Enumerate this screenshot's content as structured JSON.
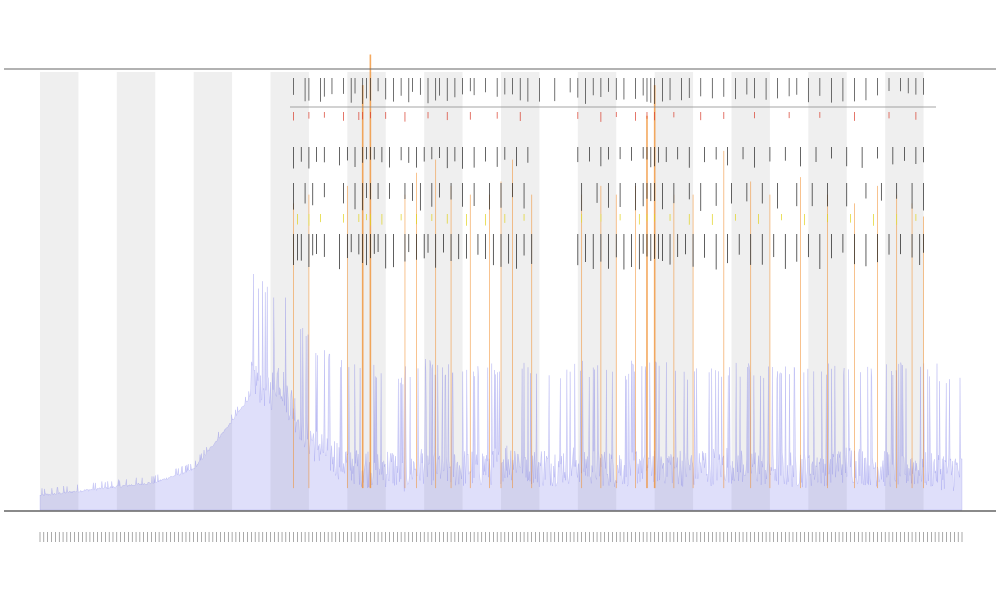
{
  "chart_data": {
    "type": "area",
    "title": "",
    "subtitle_lines": [],
    "xlabel": "",
    "ylabel": "",
    "grid": false,
    "legend_position": "top-left",
    "legend": [],
    "track_labels": [],
    "band_color": "#efefef",
    "area_color": "#6c6ce6",
    "x_range": [
      0,
      240
    ],
    "y_range": [
      0,
      1
    ],
    "bands": [
      [
        0,
        10
      ],
      [
        20,
        30
      ],
      [
        40,
        50
      ],
      [
        60,
        70
      ],
      [
        80,
        90
      ],
      [
        100,
        110
      ],
      [
        120,
        130
      ],
      [
        140,
        150
      ],
      [
        160,
        170
      ],
      [
        180,
        190
      ],
      [
        200,
        210
      ],
      [
        220,
        230
      ]
    ],
    "baseline_profile": {
      "x": [
        0,
        10,
        20,
        30,
        40,
        50,
        55,
        60,
        62,
        65,
        70,
        75,
        80,
        85,
        90,
        95,
        100,
        105,
        110,
        115,
        120,
        125,
        130,
        140,
        150,
        160,
        170,
        180,
        190,
        200,
        210,
        220,
        230,
        240
      ],
      "y": [
        0.03,
        0.04,
        0.05,
        0.06,
        0.09,
        0.2,
        0.26,
        0.22,
        0.26,
        0.2,
        0.12,
        0.08,
        0.06,
        0.05,
        0.05,
        0.04,
        0.06,
        0.05,
        0.05,
        0.05,
        0.06,
        0.07,
        0.05,
        0.06,
        0.05,
        0.06,
        0.05,
        0.06,
        0.05,
        0.05,
        0.06,
        0.05,
        0.05,
        0.04
      ]
    },
    "peaks": [
      {
        "x": 66,
        "height": 0.28
      },
      {
        "x": 70,
        "height": 0.3
      },
      {
        "x": 80,
        "height": 0.32
      },
      {
        "x": 84,
        "height": 0.55
      },
      {
        "x": 86,
        "height": 0.62
      },
      {
        "x": 95,
        "height": 0.3
      },
      {
        "x": 98,
        "height": 0.35
      },
      {
        "x": 103,
        "height": 0.38
      },
      {
        "x": 107,
        "height": 0.32
      },
      {
        "x": 112,
        "height": 0.3
      },
      {
        "x": 117,
        "height": 0.3
      },
      {
        "x": 120,
        "height": 0.33
      },
      {
        "x": 123,
        "height": 0.38
      },
      {
        "x": 128,
        "height": 0.3
      },
      {
        "x": 141,
        "height": 0.3
      },
      {
        "x": 146,
        "height": 0.32
      },
      {
        "x": 150,
        "height": 0.3
      },
      {
        "x": 155,
        "height": 0.32
      },
      {
        "x": 158,
        "height": 0.48
      },
      {
        "x": 160,
        "height": 0.55
      },
      {
        "x": 165,
        "height": 0.3
      },
      {
        "x": 170,
        "height": 0.3
      },
      {
        "x": 178,
        "height": 0.4
      },
      {
        "x": 185,
        "height": 0.33
      },
      {
        "x": 190,
        "height": 0.3
      },
      {
        "x": 198,
        "height": 0.34
      },
      {
        "x": 205,
        "height": 0.3
      },
      {
        "x": 212,
        "height": 0.28
      },
      {
        "x": 218,
        "height": 0.32
      },
      {
        "x": 223,
        "height": 0.3
      },
      {
        "x": 227,
        "height": 0.28
      },
      {
        "x": 230,
        "height": 0.25
      }
    ],
    "tracks": [
      {
        "name": "",
        "color": "#333333",
        "marks_x": [
          66,
          69,
          70,
          73,
          74,
          76,
          79,
          81,
          82,
          84,
          85,
          86,
          88,
          90,
          92,
          94,
          96,
          97,
          99,
          101,
          103,
          104,
          106,
          108,
          110,
          112,
          113,
          116,
          119,
          121,
          123,
          125,
          127,
          130,
          134,
          138,
          140,
          142,
          144,
          146,
          148,
          150,
          152,
          155,
          157,
          158,
          159,
          160,
          162,
          164,
          167,
          169,
          172,
          175,
          178,
          181,
          184,
          186,
          189,
          192,
          195,
          197,
          200,
          203,
          206,
          209,
          212,
          215,
          218,
          221,
          224,
          226,
          228,
          230
        ]
      },
      {
        "name": "",
        "color": "#d83b2a",
        "marks_x": [
          66,
          70,
          74,
          79,
          83,
          84,
          86,
          90,
          95,
          101,
          106,
          112,
          119,
          125,
          140,
          146,
          150,
          155,
          158,
          160,
          165,
          172,
          178,
          186,
          195,
          203,
          212,
          221,
          228
        ]
      },
      {
        "name": "",
        "color": "#222222",
        "marks_x": [
          66,
          68,
          70,
          72,
          74,
          78,
          80,
          82,
          84,
          85,
          86,
          87,
          89,
          91,
          94,
          96,
          98,
          100,
          102,
          104,
          106,
          108,
          110,
          113,
          116,
          119,
          121,
          124,
          127,
          140,
          143,
          146,
          148,
          151,
          154,
          157,
          158,
          159,
          160,
          161,
          163,
          166,
          169,
          173,
          176,
          179,
          183,
          186,
          190,
          194,
          198,
          202,
          206,
          210,
          214,
          218,
          222,
          225,
          228,
          230
        ]
      },
      {
        "name": "",
        "color": "#222222",
        "marks_x": [
          66,
          69,
          71,
          74,
          79,
          82,
          84,
          85,
          86,
          88,
          91,
          95,
          97,
          99,
          102,
          104,
          107,
          110,
          113,
          117,
          120,
          123,
          126,
          141,
          145,
          148,
          151,
          155,
          157,
          158,
          159,
          160,
          162,
          165,
          169,
          172,
          176,
          180,
          184,
          188,
          192,
          197,
          201,
          205,
          210,
          215,
          219,
          223,
          227,
          230
        ]
      },
      {
        "name": "",
        "color": "#e0d21c",
        "marks_x": [
          67,
          70,
          73,
          79,
          83,
          85,
          86,
          89,
          94,
          98,
          102,
          106,
          111,
          116,
          121,
          126,
          141,
          146,
          151,
          156,
          158,
          160,
          164,
          169,
          175,
          181,
          187,
          193,
          199,
          205,
          211,
          217,
          223,
          228
        ]
      },
      {
        "name": "",
        "color": "#1a1a1a",
        "marks_x": [
          66,
          67,
          68,
          70,
          71,
          72,
          74,
          78,
          80,
          81,
          83,
          84,
          85,
          86,
          87,
          88,
          90,
          92,
          95,
          96,
          98,
          100,
          101,
          103,
          105,
          107,
          109,
          111,
          114,
          116,
          118,
          120,
          122,
          124,
          126,
          128,
          140,
          142,
          144,
          146,
          148,
          150,
          152,
          154,
          156,
          157,
          158,
          159,
          160,
          161,
          162,
          164,
          166,
          168,
          170,
          173,
          176,
          179,
          182,
          185,
          188,
          191,
          194,
          197,
          200,
          203,
          206,
          209,
          212,
          215,
          218,
          221,
          224,
          227,
          229,
          230
        ]
      }
    ]
  }
}
